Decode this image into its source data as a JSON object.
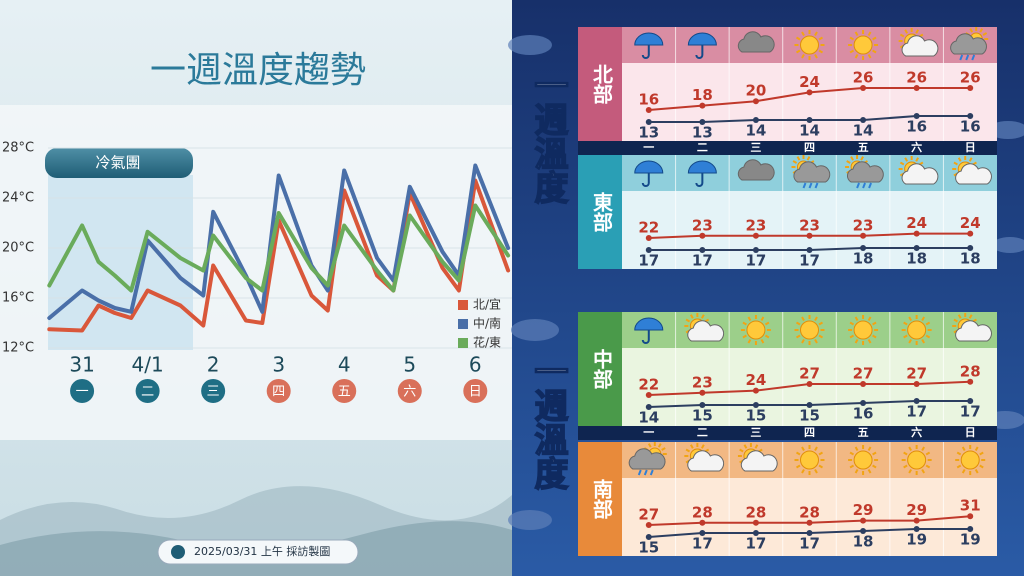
{
  "chart_data": [
    {
      "type": "line",
      "title": "一週溫度趨勢",
      "annotation": "冷氣團",
      "x": [
        -0.5,
        0,
        0.25,
        0.5,
        0.75,
        1,
        1.5,
        1.85,
        2,
        2.5,
        2.75,
        3,
        3.5,
        3.75,
        4,
        4.5,
        4.75,
        5,
        5.5,
        5.75,
        6,
        6.5
      ],
      "xlim": [
        -0.52,
        6.56
      ],
      "ylim": [
        12,
        28
      ],
      "yticks": [
        {
          "value": 12,
          "label": "12°C"
        },
        {
          "value": 16,
          "label": "16°C"
        },
        {
          "value": 20,
          "label": "20°C"
        },
        {
          "value": 24,
          "label": "24°C"
        },
        {
          "value": 28,
          "label": "28°C"
        }
      ],
      "grid": true,
      "legend": "lower right",
      "categories": [
        "31",
        "4/1",
        "2",
        "3",
        "4",
        "5",
        "6"
      ],
      "weekdays": [
        "一",
        "二",
        "三",
        "四",
        "五",
        "六",
        "日"
      ],
      "weekday_colors": [
        "#1f6e85",
        "#1f6e85",
        "#1f6e85",
        "#d9705a",
        "#d9705a",
        "#d9705a",
        "#d9705a"
      ],
      "series": [
        {
          "name": "北/宜",
          "color": "#d9573a",
          "values": [
            13.5,
            13.4,
            15.4,
            14.8,
            14.4,
            16.6,
            15.4,
            13.8,
            18.6,
            14.2,
            14,
            22.2,
            16.2,
            15,
            24.6,
            17.8,
            16.6,
            24.4,
            18.4,
            16.6,
            25.4,
            18.2
          ]
        },
        {
          "name": "中/南",
          "color": "#4a6fa8",
          "values": [
            14.4,
            16.6,
            15.8,
            15.2,
            14.9,
            20.6,
            17.6,
            16.2,
            22.9,
            17.8,
            14.9,
            25.8,
            18.6,
            16.6,
            26.2,
            19.2,
            17.4,
            24.9,
            19.7,
            17.8,
            26.6,
            20
          ]
        },
        {
          "name": "花/東",
          "color": "#6aab5b",
          "values": [
            17,
            21.8,
            18.9,
            17.8,
            16.6,
            21.3,
            19.2,
            18.2,
            21,
            17.6,
            16.6,
            22.8,
            18.4,
            17,
            21.8,
            18.2,
            16.6,
            22.6,
            18.9,
            17.4,
            23.4,
            19.4
          ]
        }
      ]
    },
    {
      "type": "line",
      "title": "北部",
      "categories": [
        "一",
        "二",
        "三",
        "四",
        "五",
        "六",
        "日"
      ],
      "series": [
        {
          "color": "#c0392b",
          "values": [
            16,
            18,
            20,
            24,
            26,
            26,
            26
          ]
        },
        {
          "color": "#2c3e60",
          "values": [
            13,
            13,
            14,
            14,
            14,
            16,
            16
          ]
        }
      ]
    },
    {
      "type": "line",
      "title": "東部",
      "series": [
        {
          "color": "#c0392b",
          "values": [
            22,
            23,
            23,
            23,
            23,
            24,
            24
          ]
        },
        {
          "color": "#2c3e60",
          "values": [
            17,
            17,
            17,
            17,
            18,
            18,
            18
          ]
        }
      ]
    },
    {
      "type": "line",
      "title": "中部",
      "categories": [
        "一",
        "二",
        "三",
        "四",
        "五",
        "六",
        "日"
      ],
      "series": [
        {
          "color": "#c0392b",
          "values": [
            22,
            23,
            24,
            27,
            27,
            27,
            28
          ]
        },
        {
          "color": "#2c3e60",
          "values": [
            14,
            15,
            15,
            15,
            16,
            17,
            17
          ]
        }
      ]
    },
    {
      "type": "line",
      "title": "南部",
      "series": [
        {
          "color": "#c0392b",
          "values": [
            27,
            28,
            28,
            28,
            29,
            29,
            31
          ]
        },
        {
          "color": "#2c3e60",
          "values": [
            15,
            17,
            17,
            17,
            18,
            19,
            19
          ]
        }
      ]
    }
  ],
  "side_titles": [
    "一週溫度",
    "一週溫度"
  ],
  "footer": "2025/03/31 上午 採訪製圖"
}
